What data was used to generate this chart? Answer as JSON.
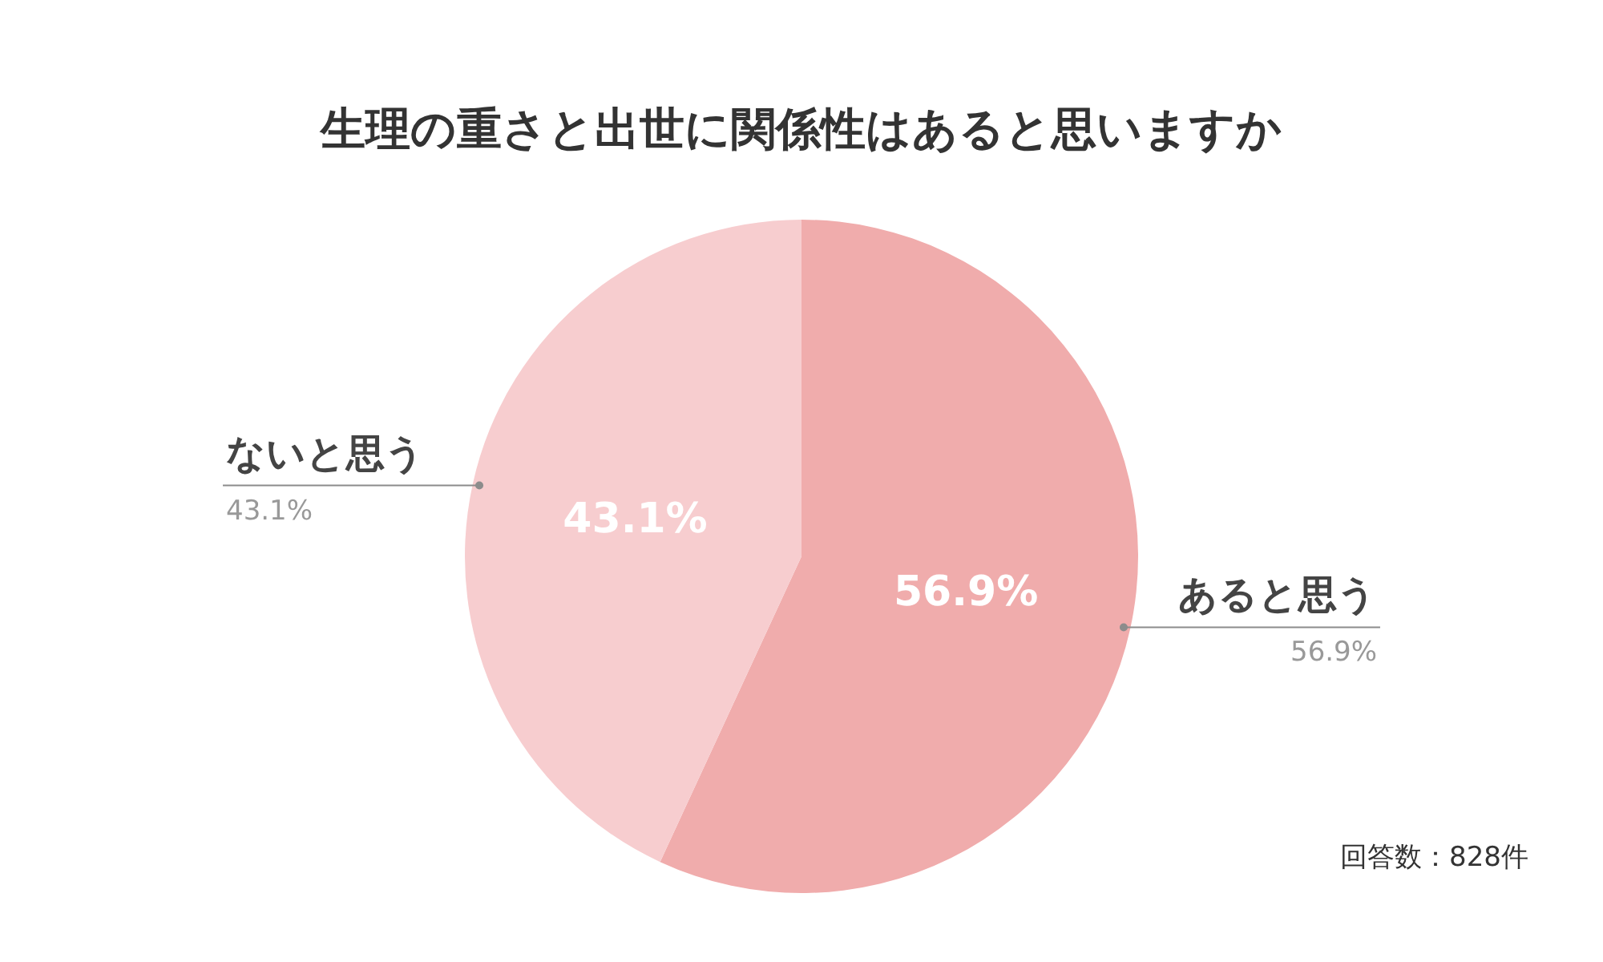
{
  "chart_data": {
    "type": "pie",
    "title": "生理の重さと出世に関係性はあると思いますか",
    "categories": [
      "あると思う",
      "ないと思う"
    ],
    "values": [
      56.9,
      43.1
    ],
    "colors": [
      "#f0acac",
      "#f7cdcf"
    ],
    "value_labels": [
      "56.9%",
      "43.1%"
    ],
    "annotations": [
      "回答数：828件"
    ],
    "legend": false
  }
}
